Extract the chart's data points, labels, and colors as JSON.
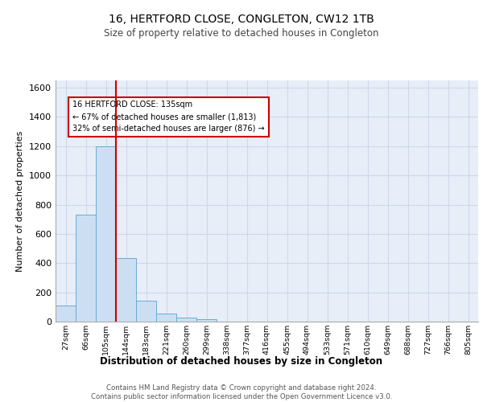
{
  "title1": "16, HERTFORD CLOSE, CONGLETON, CW12 1TB",
  "title2": "Size of property relative to detached houses in Congleton",
  "xlabel": "Distribution of detached houses by size in Congleton",
  "ylabel": "Number of detached properties",
  "footer": "Contains HM Land Registry data © Crown copyright and database right 2024.\nContains public sector information licensed under the Open Government Licence v3.0.",
  "bar_labels": [
    "27sqm",
    "66sqm",
    "105sqm",
    "144sqm",
    "183sqm",
    "221sqm",
    "260sqm",
    "299sqm",
    "338sqm",
    "377sqm",
    "416sqm",
    "455sqm",
    "494sqm",
    "533sqm",
    "571sqm",
    "610sqm",
    "649sqm",
    "688sqm",
    "727sqm",
    "766sqm",
    "805sqm"
  ],
  "bar_values": [
    110,
    730,
    1200,
    435,
    145,
    55,
    30,
    15,
    0,
    0,
    0,
    0,
    0,
    0,
    0,
    0,
    0,
    0,
    0,
    0,
    0
  ],
  "bar_color": "#ccdff2",
  "bar_edge_color": "#6aaad4",
  "grid_color": "#cdd8ea",
  "background_color": "#e8eef8",
  "red_line_color": "#cc0000",
  "annotation_text": "16 HERTFORD CLOSE: 135sqm\n← 67% of detached houses are smaller (1,813)\n32% of semi-detached houses are larger (876) →",
  "annotation_box_color": "#ffffff",
  "annotation_box_edge": "#cc0000",
  "ylim": [
    0,
    1650
  ],
  "yticks": [
    0,
    200,
    400,
    600,
    800,
    1000,
    1200,
    1400,
    1600
  ]
}
